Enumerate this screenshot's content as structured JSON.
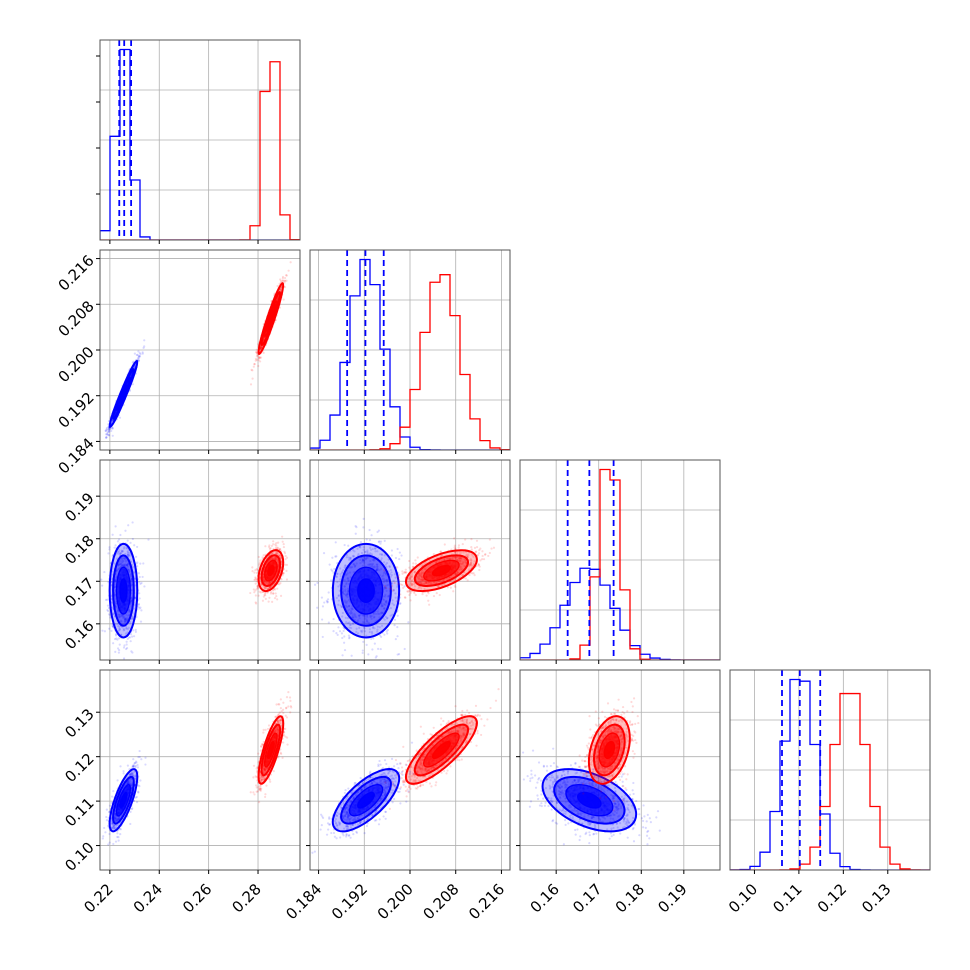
{
  "chart_data": {
    "type": "corner",
    "grid": true,
    "colors": {
      "blue": "#0000ff",
      "red": "#ff0000"
    },
    "quantiles_color": "blue",
    "parameters": [
      {
        "id": "p1",
        "range": [
          0.216,
          0.297
        ],
        "ticks": [
          "0.22",
          "0.24",
          "0.26",
          "0.28"
        ],
        "tick_values": [
          0.22,
          0.24,
          0.26,
          0.28
        ]
      },
      {
        "id": "p2",
        "range": [
          0.1825,
          0.2175
        ],
        "ticks": [
          "0.184",
          "0.192",
          "0.200",
          "0.208",
          "0.216"
        ],
        "tick_values": [
          0.184,
          0.192,
          0.2,
          0.208,
          0.216
        ]
      },
      {
        "id": "p3",
        "range": [
          0.1515,
          0.1985
        ],
        "ticks": [
          "0.16",
          "0.17",
          "0.18",
          "0.19"
        ],
        "tick_values": [
          0.16,
          0.17,
          0.18,
          0.19
        ]
      },
      {
        "id": "p4",
        "range": [
          0.0945,
          0.1395
        ],
        "ticks": [
          "0.10",
          "0.11",
          "0.12",
          "0.13"
        ],
        "tick_values": [
          0.1,
          0.11,
          0.12,
          0.13
        ]
      }
    ],
    "series": [
      {
        "color": "blue",
        "mean": [
          0.2255,
          0.1923,
          0.1678,
          0.1102
        ],
        "sd": [
          0.0028,
          0.0029,
          0.0055,
          0.0035
        ],
        "corr": {
          "0-1": 0.97,
          "0-2": 0.0,
          "0-3": 0.75,
          "1-2": 0.0,
          "1-3": 0.7,
          "2-3": -0.45
        },
        "quantiles": [
          [
            0.2238,
            0.2258,
            0.2286
          ],
          [
            0.189,
            0.1922,
            0.1954
          ],
          [
            0.1627,
            0.1678,
            0.1735
          ],
          [
            0.1062,
            0.1102,
            0.1148
          ]
        ]
      },
      {
        "color": "red",
        "mean": [
          0.2852,
          0.2055,
          0.1725,
          0.1215
        ],
        "sd": [
          0.0025,
          0.0031,
          0.0024,
          0.0038
        ],
        "corr": {
          "0-1": 0.95,
          "0-2": 0.4,
          "0-3": 0.78,
          "1-2": 0.55,
          "1-3": 0.8,
          "2-3": 0.35
        },
        "quantiles": null
      }
    ]
  }
}
